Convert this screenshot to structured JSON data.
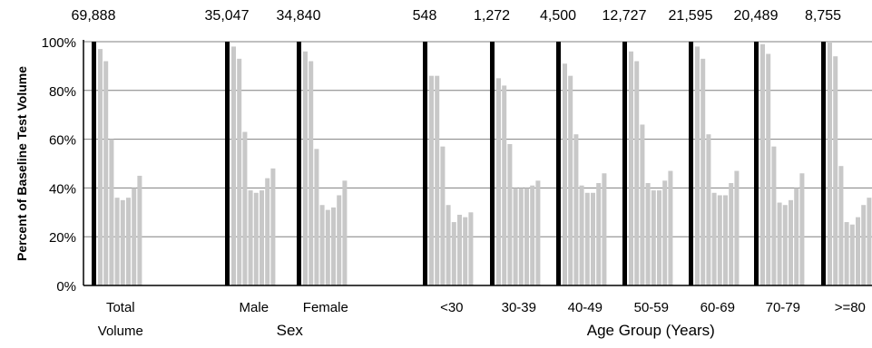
{
  "chart_data": {
    "type": "bar",
    "ylabel": "Percent of Baseline Test Volume",
    "ylim": [
      0,
      100
    ],
    "yticks": [
      0,
      20,
      40,
      60,
      80,
      100
    ],
    "ytick_labels": [
      "0%",
      "20%",
      "40%",
      "60%",
      "80%",
      "100%"
    ],
    "grid": "horizontal",
    "colors": {
      "baseline_bar": "#000000",
      "weekly_bar": "#c8c8c8",
      "grid": "#808080",
      "axis": "#000000"
    },
    "groups": [
      {
        "label": "Total\nVolume",
        "count": "69,888",
        "values": [
          100,
          97,
          92,
          60,
          36,
          35,
          36,
          40,
          45
        ]
      },
      {
        "label": "Male",
        "count": "35,047",
        "values": [
          100,
          98,
          93,
          63,
          39,
          38,
          39,
          44,
          48
        ]
      },
      {
        "label": "Female",
        "count": "34,840",
        "values": [
          100,
          96,
          92,
          56,
          33,
          31,
          32,
          37,
          43
        ]
      },
      {
        "label": "<30",
        "count": "548",
        "values": [
          100,
          86,
          86,
          57,
          33,
          26,
          29,
          28,
          30
        ]
      },
      {
        "label": "30-39",
        "count": "1,272",
        "values": [
          100,
          85,
          82,
          58,
          40,
          40,
          40,
          41,
          43
        ]
      },
      {
        "label": "40-49",
        "count": "4,500",
        "values": [
          100,
          91,
          86,
          62,
          41,
          38,
          38,
          42,
          46
        ]
      },
      {
        "label": "50-59",
        "count": "12,727",
        "values": [
          100,
          96,
          92,
          66,
          42,
          39,
          39,
          43,
          47
        ]
      },
      {
        "label": "60-69",
        "count": "21,595",
        "values": [
          100,
          98,
          93,
          62,
          38,
          37,
          37,
          42,
          47
        ]
      },
      {
        "label": "70-79",
        "count": "20,489",
        "values": [
          100,
          99,
          95,
          57,
          34,
          33,
          35,
          40,
          46
        ]
      },
      {
        "label": ">=80",
        "count": "8,755",
        "values": [
          100,
          100,
          94,
          49,
          26,
          25,
          28,
          33,
          36
        ]
      }
    ],
    "category_labels": [
      {
        "text": "Sex",
        "groups": [
          1,
          2
        ]
      },
      {
        "text": "Age Group (Years)",
        "groups": [
          3,
          9
        ]
      }
    ]
  }
}
